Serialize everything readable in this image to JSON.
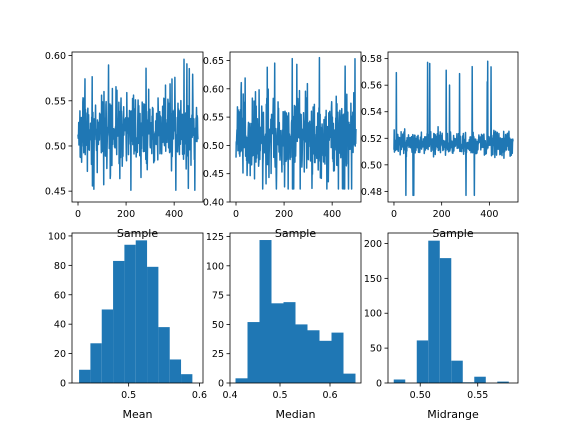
{
  "chart_data": [
    {
      "type": "line",
      "xlabel": "Sample",
      "xlim": [
        -25,
        520
      ],
      "ylim": [
        0.438,
        0.604
      ],
      "xticks": [
        0,
        200,
        400
      ],
      "xtick_labels": [
        "0",
        "200",
        "400"
      ],
      "yticks": [
        0.45,
        0.5,
        0.55,
        0.6
      ],
      "ytick_labels": [
        "0.45",
        "0.50",
        "0.55",
        "0.60"
      ],
      "series": [
        {
          "n": 500,
          "base": 0.518,
          "spread": 0.032,
          "min": 0.451,
          "max": 0.596,
          "seed": 11
        }
      ],
      "color": "#1f77b4"
    },
    {
      "type": "line",
      "xlabel": "Sample",
      "xlim": [
        -25,
        520
      ],
      "ylim": [
        0.4,
        0.665
      ],
      "xticks": [
        0,
        200,
        400
      ],
      "xtick_labels": [
        "0",
        "200",
        "400"
      ],
      "yticks": [
        0.4,
        0.45,
        0.5,
        0.55,
        0.6,
        0.65
      ],
      "ytick_labels": [
        "0.40",
        "0.45",
        "0.50",
        "0.55",
        "0.60",
        "0.65"
      ],
      "series": [
        {
          "n": 500,
          "base": 0.515,
          "spread": 0.055,
          "min": 0.423,
          "max": 0.655,
          "seed": 23
        }
      ],
      "color": "#1f77b4"
    },
    {
      "type": "line",
      "xlabel": "Sample",
      "xlim": [
        -25,
        520
      ],
      "ylim": [
        0.472,
        0.585
      ],
      "xticks": [
        0,
        200,
        400
      ],
      "xtick_labels": [
        "0",
        "200",
        "400"
      ],
      "yticks": [
        0.48,
        0.5,
        0.52,
        0.54,
        0.56,
        0.58
      ],
      "ytick_labels": [
        "0.48",
        "0.50",
        "0.52",
        "0.54",
        "0.56",
        "0.58"
      ],
      "series": [
        {
          "n": 500,
          "base": 0.516,
          "spread": 0.007,
          "min": 0.477,
          "max": 0.578,
          "seed": 37
        }
      ],
      "color": "#1f77b4"
    },
    {
      "type": "bar",
      "subtype": "histogram",
      "xlabel": "Mean",
      "xlim": [
        0.42,
        0.605
      ],
      "ylim": [
        0,
        102
      ],
      "xticks": [
        0.5,
        0.6
      ],
      "xtick_labels": [
        "0.5",
        "0.6"
      ],
      "yticks": [
        0,
        20,
        40,
        60,
        80,
        100
      ],
      "ytick_labels": [
        "0",
        "20",
        "40",
        "60",
        "80",
        "100"
      ],
      "bin_edges": [
        0.43,
        0.446,
        0.462,
        0.478,
        0.494,
        0.51,
        0.526,
        0.542,
        0.558,
        0.574,
        0.59
      ],
      "values": [
        9,
        27,
        50,
        83,
        94,
        97,
        79,
        38,
        16,
        6
      ],
      "color": "#1f77b4"
    },
    {
      "type": "bar",
      "subtype": "histogram",
      "xlabel": "Median",
      "xlim": [
        0.4,
        0.662
      ],
      "ylim": [
        0,
        128
      ],
      "xticks": [
        0.4,
        0.5,
        0.6
      ],
      "xtick_labels": [
        "0.4",
        "0.5",
        "0.6"
      ],
      "yticks": [
        0,
        25,
        50,
        75,
        100,
        125
      ],
      "ytick_labels": [
        "0",
        "25",
        "50",
        "75",
        "100",
        "125"
      ],
      "bin_edges": [
        0.411,
        0.435,
        0.459,
        0.483,
        0.507,
        0.531,
        0.555,
        0.579,
        0.603,
        0.627,
        0.651
      ],
      "values": [
        4,
        52,
        122,
        68,
        69,
        50,
        45,
        36,
        43,
        8
      ],
      "color": "#1f77b4"
    },
    {
      "type": "bar",
      "subtype": "histogram",
      "xlabel": "Midrange",
      "xlim": [
        0.472,
        0.585
      ],
      "ylim": [
        0,
        215
      ],
      "xticks": [
        0.5,
        0.55
      ],
      "xtick_labels": [
        "0.50",
        "0.55"
      ],
      "yticks": [
        0,
        50,
        100,
        150,
        200
      ],
      "ytick_labels": [
        "0",
        "50",
        "100",
        "150",
        "200"
      ],
      "bin_edges": [
        0.477,
        0.487,
        0.497,
        0.507,
        0.517,
        0.527,
        0.537,
        0.547,
        0.557,
        0.567,
        0.577
      ],
      "values": [
        5,
        0,
        61,
        204,
        179,
        32,
        1,
        9,
        0,
        2
      ],
      "color": "#1f77b4"
    }
  ]
}
